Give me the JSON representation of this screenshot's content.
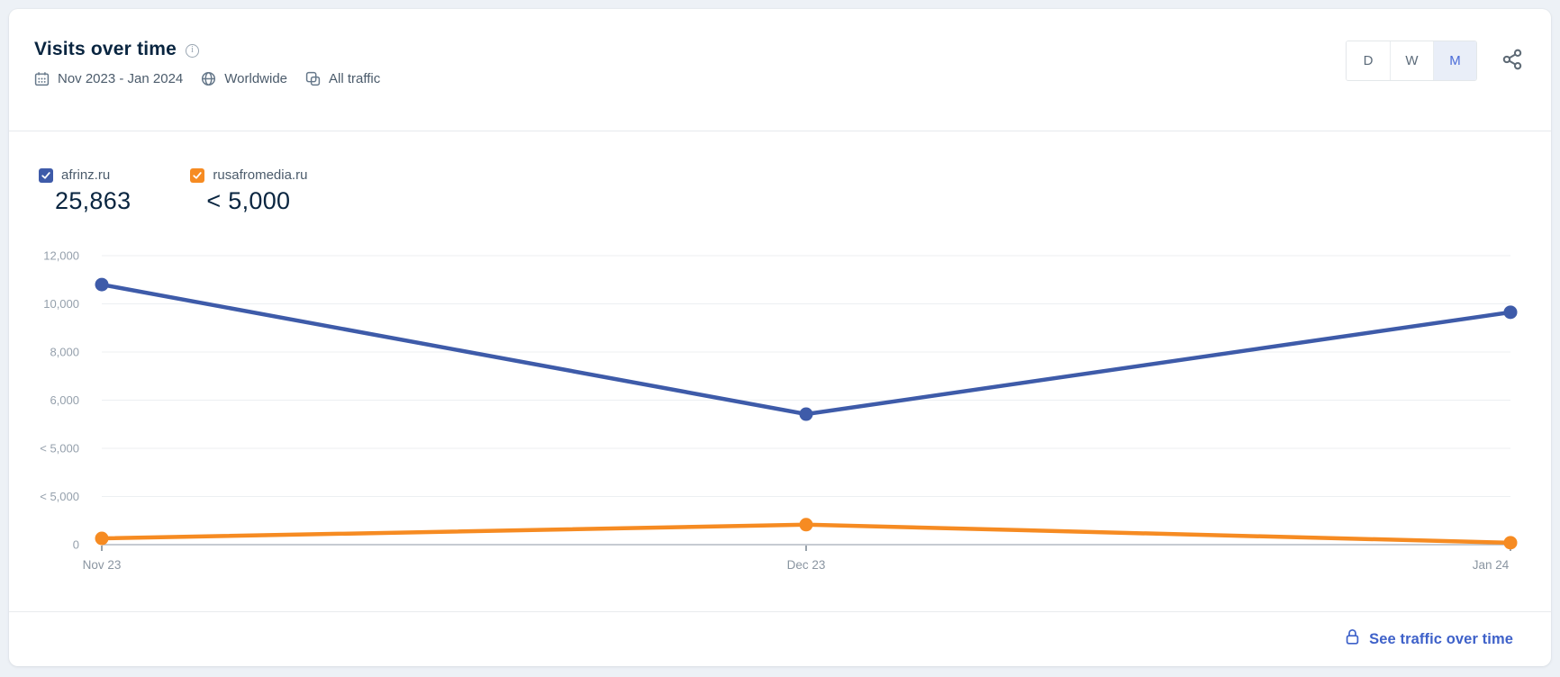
{
  "header": {
    "title": "Visits over time",
    "date_range": "Nov 2023 - Jan 2024",
    "region": "Worldwide",
    "traffic_filter": "All traffic",
    "granularity": [
      {
        "label": "D",
        "active": false
      },
      {
        "label": "W",
        "active": false
      },
      {
        "label": "M",
        "active": true
      }
    ]
  },
  "legend": {
    "items": [
      {
        "domain": "afrinz.ru",
        "value": "25,863",
        "checked": true
      },
      {
        "domain": "rusafromedia.ru",
        "value": "< 5,000",
        "checked": true
      }
    ]
  },
  "footer": {
    "link_label": "See traffic over time"
  },
  "chart_data": {
    "type": "line",
    "title": "Visits over time",
    "categories": [
      "Nov 23",
      "Dec 23",
      "Jan 24"
    ],
    "series": [
      {
        "name": "afrinz.ru",
        "color": "#3e5ba9",
        "total_label": "25,863",
        "values": [
          10800,
          5420,
          9650
        ]
      },
      {
        "name": "rusafromedia.ru",
        "color": "#f68b22",
        "total_label": "< 5,000",
        "values": [
          260,
          830,
          80
        ]
      }
    ],
    "ylim": [
      0,
      12000
    ],
    "y_ticks": [
      {
        "value": 0,
        "label": "0"
      },
      {
        "value": 2000,
        "label": "< 5,000"
      },
      {
        "value": 4000,
        "label": "< 5,000"
      },
      {
        "value": 6000,
        "label": "6,000"
      },
      {
        "value": 8000,
        "label": "8,000"
      },
      {
        "value": 10000,
        "label": "10,000"
      },
      {
        "value": 12000,
        "label": "12,000"
      }
    ],
    "grid": true,
    "legend_position": "top-left",
    "axis_colors": {
      "grid": "#eceff2",
      "axis": "#b3bac3",
      "tick_label": "#95a0ac",
      "x_label": "#8a95a1",
      "x_tick": "#7e8a96"
    }
  }
}
